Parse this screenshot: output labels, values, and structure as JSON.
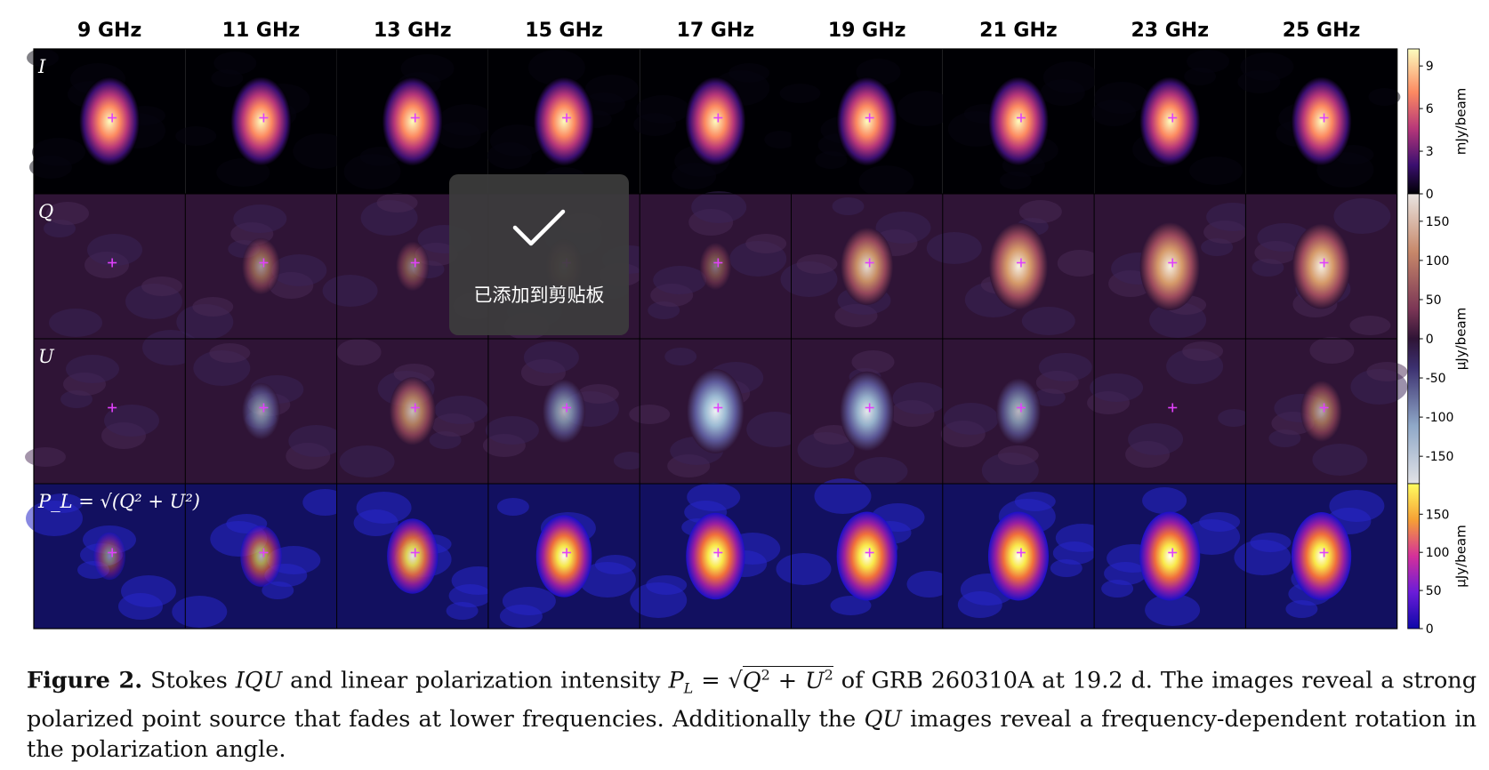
{
  "figure": {
    "frequencies": [
      "9 GHz",
      "11 GHz",
      "13 GHz",
      "15 GHz",
      "17 GHz",
      "19 GHz",
      "21 GHz",
      "23 GHz",
      "25 GHz"
    ],
    "rows": [
      {
        "label": "I",
        "colormap": "magma"
      },
      {
        "label": "Q",
        "colormap": "twilight_shifted"
      },
      {
        "label": "U",
        "colormap": "twilight_shifted"
      },
      {
        "label": "P_L = √(Q² + U²)",
        "colormap": "plasma"
      }
    ],
    "colorbars": [
      {
        "label": "mJy/beam",
        "ticks": [
          "9",
          "6",
          "3",
          "0"
        ],
        "range": [
          0,
          10.2
        ]
      },
      {
        "label": "μJy/beam",
        "ticks": [
          "150",
          "100",
          "50",
          "0",
          "-50",
          "-100",
          "-150"
        ],
        "range": [
          -185,
          185
        ]
      },
      {
        "label": "μJy/beam",
        "ticks": [
          "150",
          "100",
          "50",
          "0"
        ],
        "range": [
          0,
          190
        ]
      }
    ],
    "brightness": {
      "I": [
        1,
        1,
        1,
        1,
        1,
        1,
        1,
        1,
        1
      ],
      "Q": [
        0,
        0.3,
        0.15,
        0.25,
        0.1,
        0.75,
        0.95,
        0.98,
        0.92
      ],
      "U": [
        0.05,
        -0.3,
        0.55,
        -0.45,
        -0.9,
        -0.8,
        -0.5,
        0,
        0.4
      ],
      "P_L": [
        0.1,
        0.4,
        0.7,
        0.85,
        0.95,
        1,
        1,
        1,
        0.98
      ]
    }
  },
  "caption": {
    "label": "Figure 2.",
    "part1": "Stokes",
    "iqu": "IQU",
    "part2": "and linear polarization intensity",
    "pl": "P",
    "pl_sub": "L",
    "eq": "=",
    "q2": "Q",
    "plus": "+",
    "u2": "U",
    "sup": "2",
    "part3": "of GRB 260310A at 19.2 d. The images reveal a strong polarized point source that fades at lower frequencies. Additionally the",
    "qu": "QU",
    "part4": "images reveal a frequency-dependent rotation in the polarization angle."
  },
  "toast": {
    "message": "已添加到剪贴板",
    "icon": "checkmark-icon"
  }
}
